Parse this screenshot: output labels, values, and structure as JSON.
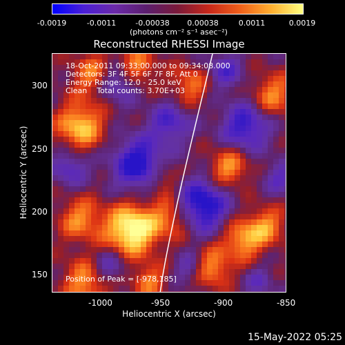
{
  "colorbar": {
    "colors": [
      "#0000ff",
      "#4b1fd6",
      "#6b2aa8",
      "#5b1e6e",
      "#7a1a3a",
      "#c8281a",
      "#f0601a",
      "#ffb030",
      "#ffff80"
    ],
    "tick_labels": [
      "-0.0019",
      "-0.0011",
      "-0.00038",
      "0.00038",
      "0.0011",
      "0.0019"
    ],
    "units_label": "(photons cm⁻² s⁻¹ asec⁻²)"
  },
  "plot": {
    "title": "Reconstructed RHESSI Image",
    "xlabel": "Heliocentric X (arcsec)",
    "ylabel": "Heliocentric Y (arcsec)",
    "x_ticks": [
      "-1000",
      "-950",
      "-900",
      "-850"
    ],
    "y_ticks": [
      "300",
      "250",
      "200",
      "150"
    ]
  },
  "annotation": {
    "time_range": "18-Oct-2011 09:33:00.000 to 09:34:08.000",
    "detectors": "Detectors: 3F 4F 5F 6F 7F 8F, Att 0",
    "energy": "Energy Range: 12.0 - 25.0 keV",
    "clean": "Clean    Total counts: 3.70E+03",
    "peak": "Position of Peak = [-978,185]"
  },
  "footer": {
    "timestamp": "15-May-2022 05:25"
  }
}
